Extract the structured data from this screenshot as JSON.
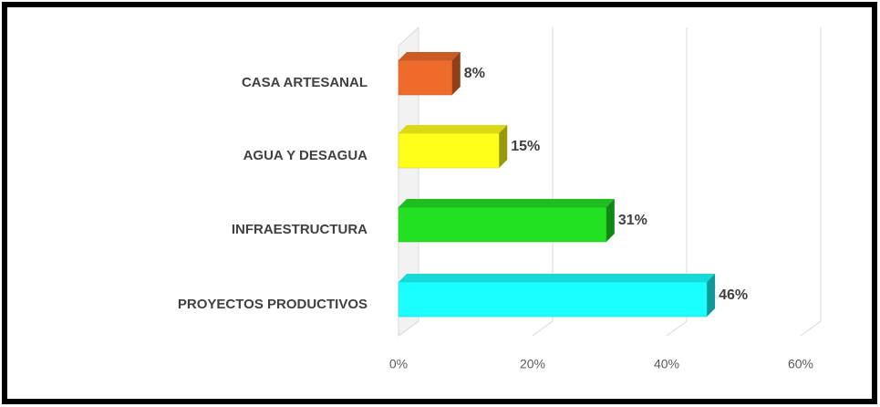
{
  "chart_data": {
    "type": "bar3d",
    "categories": [
      "CASA ARTESANAL",
      "AGUA Y DESAGUA",
      "INFRAESTRUCTURA",
      "PROYECTOS PRODUCTIVOS"
    ],
    "values": [
      8,
      15,
      31,
      46
    ],
    "value_labels": [
      "8%",
      "15%",
      "31%",
      "46%"
    ],
    "colors": [
      "#ee6b2c",
      "#ffff1a",
      "#22e022",
      "#1affff"
    ],
    "xlim": [
      0,
      60
    ],
    "xticks": [
      {
        "value": 0,
        "label": "0%"
      },
      {
        "value": 20,
        "label": "20%"
      },
      {
        "value": 40,
        "label": "40%"
      },
      {
        "value": 60,
        "label": "60%"
      }
    ],
    "grid": true
  }
}
